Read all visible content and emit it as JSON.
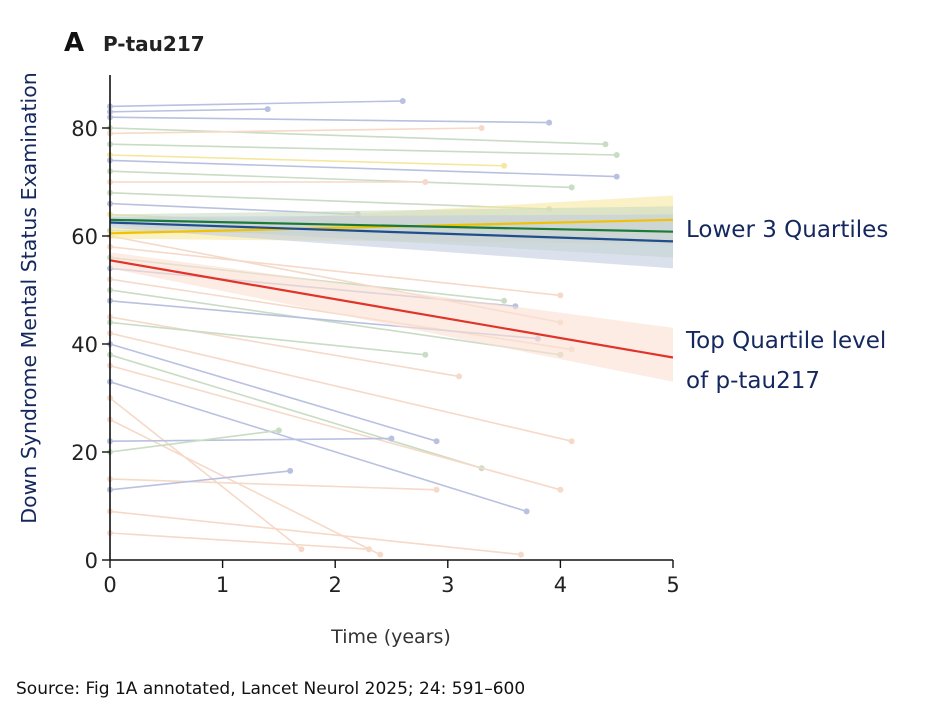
{
  "chart_data": {
    "type": "line",
    "panel_letter": "A",
    "title": "P-tau217",
    "xlabel": "Time (years)",
    "ylabel": "Down Syndrome Mental Status Examination",
    "xlim": [
      0,
      5
    ],
    "ylim": [
      0,
      88
    ],
    "xticks": [
      0,
      1,
      2,
      3,
      4,
      5
    ],
    "yticks": [
      0,
      20,
      40,
      60,
      80
    ],
    "grid": false,
    "series": [
      {
        "name": "Quartile yellow",
        "color": "#f2c200",
        "band": "#f6e7a0",
        "x": [
          0,
          5
        ],
        "y": [
          60.5,
          63
        ],
        "ci_low": [
          59.5,
          58.5
        ],
        "ci_high": [
          61.5,
          67.5
        ]
      },
      {
        "name": "Quartile green",
        "color": "#1b7a3a",
        "band": "#c9dcc4",
        "x": [
          0,
          5
        ],
        "y": [
          63,
          60.8
        ],
        "ci_low": [
          62,
          56
        ],
        "ci_high": [
          64,
          65.5
        ]
      },
      {
        "name": "Quartile blue",
        "color": "#1f4e8c",
        "band": "#c3cde0",
        "x": [
          0,
          5
        ],
        "y": [
          62.5,
          59
        ],
        "ci_low": [
          61.5,
          54
        ],
        "ci_high": [
          63.5,
          64
        ]
      },
      {
        "name": "Top quartile",
        "color": "#e0342a",
        "band": "#fbe0d2",
        "x": [
          0,
          5
        ],
        "y": [
          55.5,
          37.5
        ],
        "ci_low": [
          54,
          33
        ],
        "ci_high": [
          57,
          43
        ]
      }
    ],
    "individual_trajectories": [
      {
        "c": "#b9c1e0",
        "p": [
          [
            0,
            84
          ],
          [
            2.6,
            85
          ]
        ]
      },
      {
        "c": "#b9c1e0",
        "p": [
          [
            0,
            83
          ],
          [
            1.4,
            83.5
          ]
        ]
      },
      {
        "c": "#b9c1e0",
        "p": [
          [
            0,
            82
          ],
          [
            3.9,
            81
          ]
        ]
      },
      {
        "c": "#c9dcc4",
        "p": [
          [
            0,
            80
          ],
          [
            4.4,
            77
          ]
        ]
      },
      {
        "c": "#f6d9c8",
        "p": [
          [
            0,
            79
          ],
          [
            3.3,
            80
          ]
        ]
      },
      {
        "c": "#c9dcc4",
        "p": [
          [
            0,
            77
          ],
          [
            4.5,
            75
          ]
        ]
      },
      {
        "c": "#f6e7a0",
        "p": [
          [
            0,
            75
          ],
          [
            3.5,
            73
          ]
        ]
      },
      {
        "c": "#b9c1e0",
        "p": [
          [
            0,
            74
          ],
          [
            4.5,
            71
          ]
        ]
      },
      {
        "c": "#c9dcc4",
        "p": [
          [
            0,
            72
          ],
          [
            4.1,
            69
          ]
        ]
      },
      {
        "c": "#f6d9c8",
        "p": [
          [
            0,
            70
          ],
          [
            2.8,
            70
          ]
        ]
      },
      {
        "c": "#c9dcc4",
        "p": [
          [
            0,
            68
          ],
          [
            3.9,
            65
          ]
        ]
      },
      {
        "c": "#b9c1e0",
        "p": [
          [
            0,
            66
          ],
          [
            2.2,
            64
          ]
        ]
      },
      {
        "c": "#f6d9c8",
        "p": [
          [
            0,
            58
          ],
          [
            4.0,
            49
          ]
        ]
      },
      {
        "c": "#c9dcc4",
        "p": [
          [
            0,
            56
          ],
          [
            3.5,
            48
          ]
        ]
      },
      {
        "c": "#b9c1e0",
        "p": [
          [
            0,
            54
          ],
          [
            3.6,
            47
          ]
        ]
      },
      {
        "c": "#f6d9c8",
        "p": [
          [
            0,
            52
          ],
          [
            4.1,
            39
          ]
        ]
      },
      {
        "c": "#c9dcc4",
        "p": [
          [
            0,
            50
          ],
          [
            4.0,
            38
          ]
        ]
      },
      {
        "c": "#b9c1e0",
        "p": [
          [
            0,
            48
          ],
          [
            3.8,
            41
          ]
        ]
      },
      {
        "c": "#f6d9c8",
        "p": [
          [
            0,
            45
          ],
          [
            3.1,
            34
          ]
        ]
      },
      {
        "c": "#c9dcc4",
        "p": [
          [
            0,
            44
          ],
          [
            2.8,
            38
          ]
        ]
      },
      {
        "c": "#f6d9c8",
        "p": [
          [
            0,
            42
          ],
          [
            4.1,
            22
          ]
        ]
      },
      {
        "c": "#b9c1e0",
        "p": [
          [
            0,
            40
          ],
          [
            2.9,
            22
          ]
        ]
      },
      {
        "c": "#c9dcc4",
        "p": [
          [
            0,
            38
          ],
          [
            3.3,
            17
          ]
        ]
      },
      {
        "c": "#f6d9c8",
        "p": [
          [
            0,
            36
          ],
          [
            4.0,
            13
          ]
        ]
      },
      {
        "c": "#b9c1e0",
        "p": [
          [
            0,
            33
          ],
          [
            3.7,
            9
          ]
        ]
      },
      {
        "c": "#f6d9c8",
        "p": [
          [
            0,
            30
          ],
          [
            1.7,
            2
          ]
        ]
      },
      {
        "c": "#f6d9c8",
        "p": [
          [
            0,
            26
          ],
          [
            2.4,
            1
          ]
        ]
      },
      {
        "c": "#b9c1e0",
        "p": [
          [
            0,
            22
          ],
          [
            2.5,
            22.5
          ]
        ]
      },
      {
        "c": "#c9dcc4",
        "p": [
          [
            0,
            20
          ],
          [
            1.5,
            24
          ]
        ]
      },
      {
        "c": "#f6d9c8",
        "p": [
          [
            0,
            15
          ],
          [
            2.9,
            13
          ]
        ]
      },
      {
        "c": "#b9c1e0",
        "p": [
          [
            0,
            13
          ],
          [
            1.6,
            16.5
          ]
        ]
      },
      {
        "c": "#f6d9c8",
        "p": [
          [
            0,
            9
          ],
          [
            3.65,
            1
          ]
        ]
      },
      {
        "c": "#f6d9c8",
        "p": [
          [
            0,
            5
          ],
          [
            2.3,
            2
          ]
        ]
      },
      {
        "c": "#c9dcc4",
        "p": [
          [
            0,
            61
          ],
          [
            4.3,
            60
          ]
        ]
      },
      {
        "c": "#f6e7a0",
        "p": [
          [
            0,
            64
          ],
          [
            3.0,
            61
          ]
        ]
      },
      {
        "c": "#f6d9c8",
        "p": [
          [
            0,
            60
          ],
          [
            4.0,
            44
          ]
        ]
      }
    ]
  },
  "annotations": {
    "lower": "Lower 3 Quartiles",
    "top_line1": "Top Quartile level",
    "top_line2": "of p-tau217"
  },
  "source": "Source: Fig 1A annotated, Lancet Neurol 2025; 24: 591–600"
}
